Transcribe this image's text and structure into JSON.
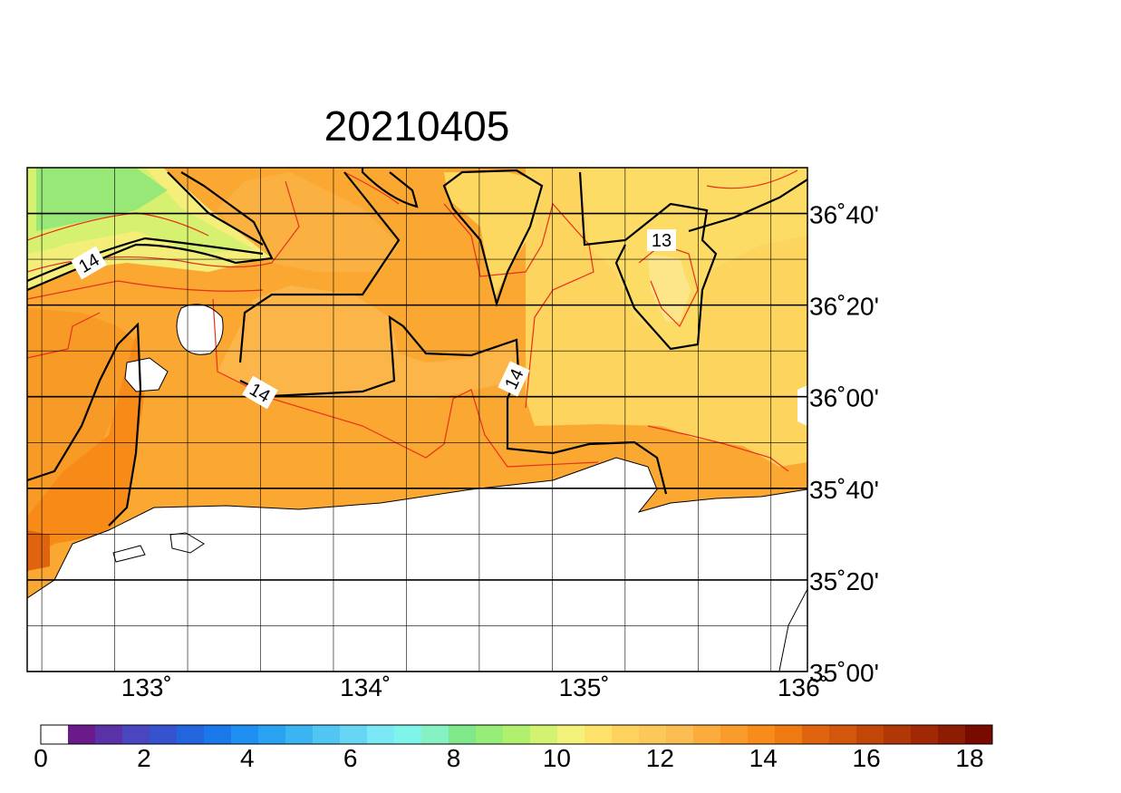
{
  "title": "20210405",
  "map": {
    "lon_labels": [
      {
        "value": 133,
        "text": "133˚"
      },
      {
        "value": 134,
        "text": "134˚"
      },
      {
        "value": 135,
        "text": "135˚"
      },
      {
        "value": 136,
        "text": "136˚"
      }
    ],
    "lat_labels": [
      {
        "value": 36.6667,
        "text": "36˚40'"
      },
      {
        "value": 36.3333,
        "text": "36˚20'"
      },
      {
        "value": 36.0,
        "text": "36˚00'"
      },
      {
        "value": 35.6667,
        "text": "35˚40'"
      },
      {
        "value": 35.3333,
        "text": "35˚20'"
      },
      {
        "value": 35.0,
        "text": "35˚00'"
      }
    ],
    "contour_labels": [
      "14",
      "14",
      "14",
      "13"
    ]
  },
  "colorbar": {
    "tick_labels": [
      "0",
      "2",
      "4",
      "6",
      "8",
      "10",
      "12",
      "14",
      "16",
      "18"
    ],
    "colors": [
      "#ffffff",
      "#6a1a8a",
      "#5a32a8",
      "#4a46c0",
      "#3553cf",
      "#2265dd",
      "#1a78ea",
      "#1f8ff2",
      "#2aa2f2",
      "#3bb5f2",
      "#52c6f2",
      "#66d6f4",
      "#7ae8f5",
      "#7ef5e8",
      "#86f2c4",
      "#7ee88a",
      "#96ee78",
      "#b0f06e",
      "#d4f272",
      "#f3f27a",
      "#fde36a",
      "#fdd35e",
      "#fdc85a",
      "#fbbd52",
      "#fbac3c",
      "#f99c2c",
      "#f88c1a",
      "#f07a12",
      "#e06410",
      "#d2560c",
      "#c24608",
      "#b13806",
      "#a02804",
      "#8c1c02",
      "#780a00"
    ]
  }
}
